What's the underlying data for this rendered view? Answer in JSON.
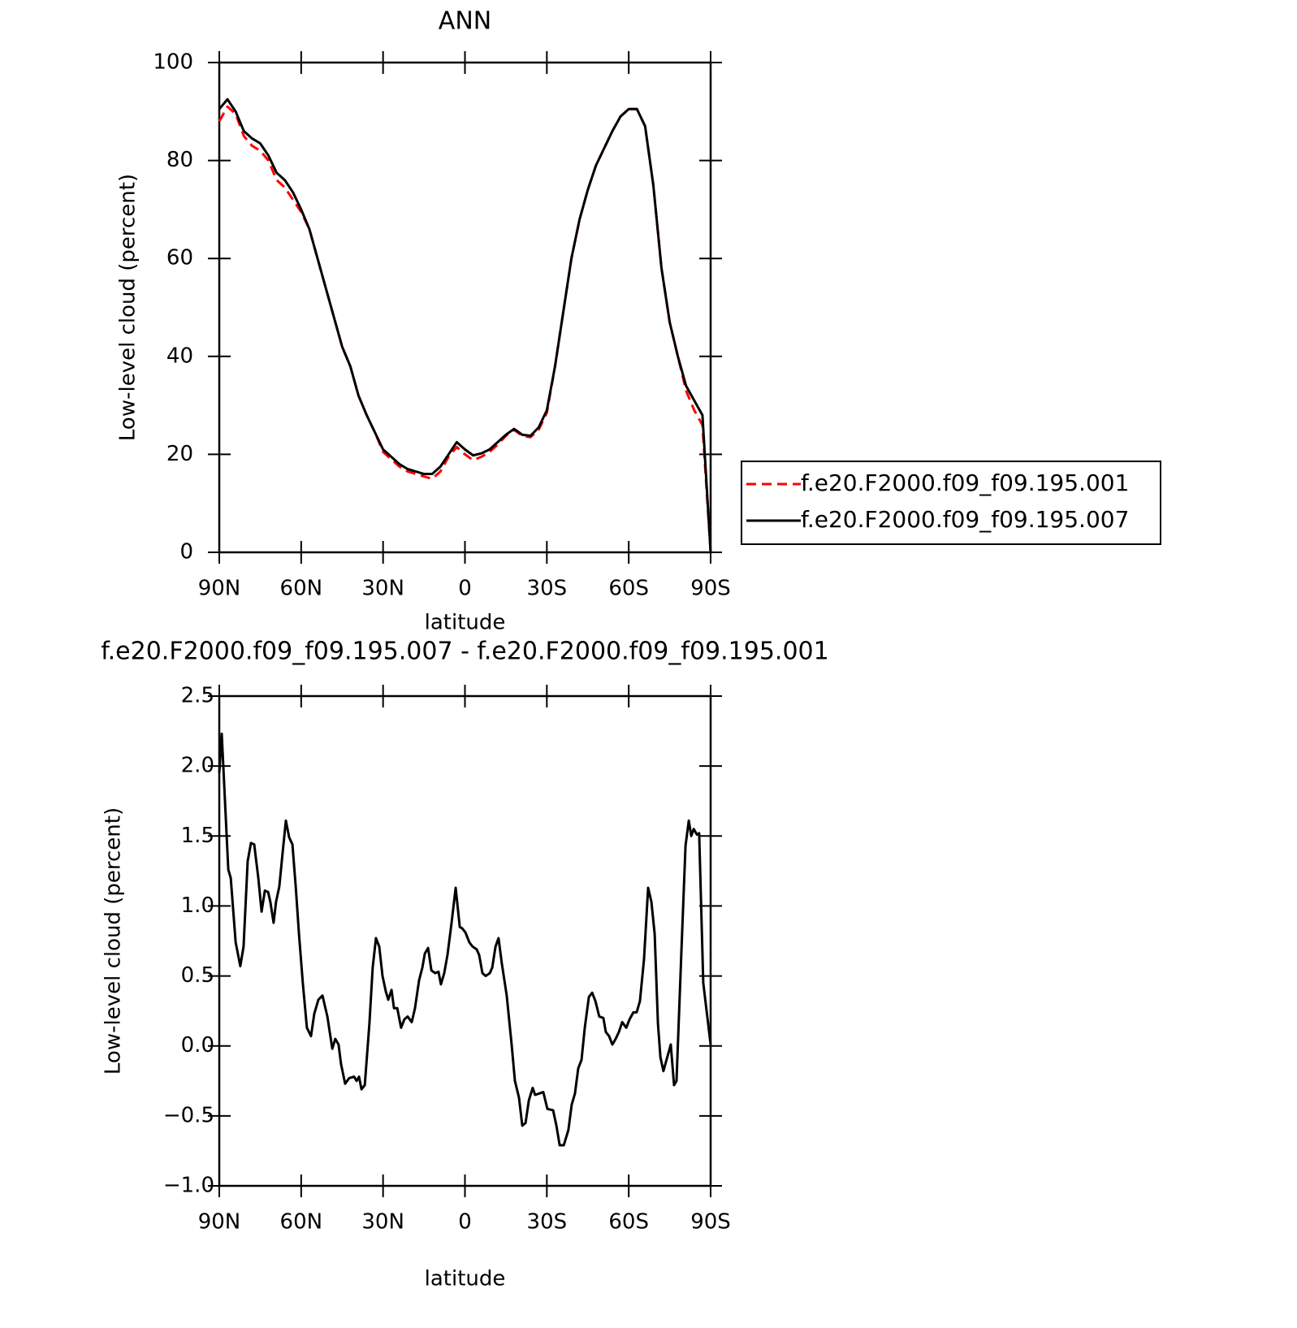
{
  "chart_data": [
    {
      "type": "line",
      "title": "ANN",
      "xlabel": "latitude",
      "ylabel": "Low-level cloud (percent)",
      "x": [
        90,
        87,
        84,
        81,
        78,
        75,
        72,
        69,
        66,
        63,
        60,
        57,
        54,
        51,
        48,
        45,
        42,
        39,
        36,
        33,
        30,
        27,
        24,
        21,
        18,
        15,
        12,
        9,
        6,
        3,
        0,
        -3,
        -6,
        -9,
        -12,
        -15,
        -18,
        -21,
        -24,
        -27,
        -30,
        -33,
        -36,
        -39,
        -42,
        -45,
        -48,
        -51,
        -54,
        -57,
        -60,
        -63,
        -66,
        -69,
        -72,
        -75,
        -78,
        -81,
        -84,
        -87,
        -90
      ],
      "series": [
        {
          "name": "f.e20.F2000.f09_f09.195.001",
          "color": "#ff0000",
          "dash": "dashed",
          "values": [
            88,
            91,
            89.5,
            85,
            83,
            82,
            80,
            76,
            74.5,
            72,
            69.5,
            66,
            60,
            54,
            48,
            42,
            38,
            32,
            28,
            24.5,
            20.5,
            19,
            17.5,
            16.5,
            16,
            15.5,
            15,
            16.5,
            19.5,
            21.5,
            20,
            18.8,
            19.5,
            20.5,
            22,
            23.8,
            25,
            23.8,
            23.5,
            25,
            28.5,
            38,
            49,
            60,
            68,
            74,
            79,
            82.5,
            86,
            89,
            90.5,
            90.5,
            87,
            75,
            58,
            47,
            40,
            33,
            29,
            26,
            0
          ]
        },
        {
          "name": "f.e20.F2000.f09_f09.195.007",
          "color": "#000000",
          "dash": "solid",
          "values": [
            90.5,
            92.5,
            90,
            86,
            84.5,
            83.5,
            81,
            77.5,
            76,
            73.5,
            70,
            66,
            60,
            54,
            48,
            42,
            38,
            32,
            28,
            24.5,
            21,
            19.5,
            18,
            17,
            16.5,
            16,
            16,
            17.5,
            20,
            22.5,
            21,
            19.8,
            20.2,
            21,
            22.5,
            24,
            25.2,
            24,
            23.8,
            25.5,
            29,
            38,
            49,
            60,
            68,
            74,
            79,
            82.5,
            86,
            89,
            90.5,
            90.5,
            87,
            75,
            58,
            47,
            40,
            34,
            31,
            28,
            0
          ]
        }
      ],
      "xlim": [
        90,
        -90
      ],
      "xticks": [
        {
          "value": 90,
          "label": "90N"
        },
        {
          "value": 60,
          "label": "60N"
        },
        {
          "value": 30,
          "label": "30N"
        },
        0,
        {
          "value": -30,
          "label": "30S"
        },
        {
          "value": -60,
          "label": "60S"
        },
        {
          "value": -90,
          "label": "90S"
        }
      ],
      "ylim": [
        0,
        100
      ],
      "yticks": [
        0,
        20,
        40,
        60,
        80,
        100
      ],
      "legend": "right"
    },
    {
      "type": "line",
      "title": "f.e20.F2000.f09_f09.195.007 - f.e20.F2000.f09_f09.195.001",
      "xlabel": "latitude",
      "ylabel": "Low-level cloud (percent)",
      "x": [
        90,
        89.1,
        86.7,
        85.8,
        84.0,
        82.3,
        81.1,
        79.6,
        78.4,
        77.2,
        75.7,
        74.5,
        73.3,
        72.1,
        71.3,
        70.1,
        69.2,
        68.0,
        66.8,
        65.6,
        64.4,
        63.2,
        62.0,
        60.8,
        59.4,
        57.9,
        56.4,
        55.2,
        53.7,
        52.2,
        50.4,
        48.6,
        47.5,
        46.3,
        45.4,
        43.9,
        42.4,
        40.6,
        39.7,
        38.8,
        37.9,
        36.7,
        35.0,
        33.8,
        32.6,
        31.4,
        30.2,
        29.0,
        28.1,
        26.9,
        26.0,
        24.8,
        23.4,
        22.2,
        21.0,
        19.5,
        18.3,
        16.8,
        15.6,
        14.7,
        13.5,
        12.3,
        10.9,
        9.7,
        8.8,
        7.6,
        6.4,
        4.9,
        3.4,
        1.9,
        1.0,
        -0.2,
        -1.6,
        -2.8,
        -4.3,
        -5.2,
        -6.4,
        -7.6,
        -9.1,
        -10.0,
        -11.2,
        -12.3,
        -13.5,
        -15.3,
        -17.1,
        -18.3,
        -19.8,
        -21.0,
        -22.2,
        -23.4,
        -24.8,
        -25.7,
        -27.2,
        -28.7,
        -30.2,
        -32.3,
        -33.5,
        -34.7,
        -36.2,
        -37.9,
        -39.1,
        -40.3,
        -41.5,
        -42.7,
        -43.9,
        -45.4,
        -46.6,
        -47.8,
        -49.2,
        -50.7,
        -51.6,
        -52.8,
        -54.0,
        -55.2,
        -56.4,
        -57.6,
        -59.1,
        -60.3,
        -61.7,
        -62.9,
        -64.1,
        -65.6,
        -67.1,
        -68.3,
        -69.5,
        -70.7,
        -71.6,
        -72.7,
        -75.4,
        -76.6,
        -77.5,
        -79.3,
        -80.8,
        -82.0,
        -82.9,
        -83.8,
        -85.0,
        -85.8,
        -87.3,
        -90
      ],
      "series": [
        {
          "color": "#000000",
          "dash": "solid",
          "values": [
            1.95,
            2.23,
            1.26,
            1.2,
            0.74,
            0.57,
            0.71,
            1.32,
            1.45,
            1.44,
            1.2,
            0.96,
            1.11,
            1.1,
            1.03,
            0.88,
            1.03,
            1.14,
            1.38,
            1.61,
            1.49,
            1.44,
            1.14,
            0.8,
            0.45,
            0.13,
            0.07,
            0.23,
            0.33,
            0.36,
            0.21,
            -0.02,
            0.05,
            0.01,
            -0.13,
            -0.27,
            -0.23,
            -0.22,
            -0.25,
            -0.22,
            -0.31,
            -0.28,
            0.16,
            0.56,
            0.77,
            0.71,
            0.5,
            0.39,
            0.33,
            0.4,
            0.27,
            0.27,
            0.13,
            0.19,
            0.21,
            0.17,
            0.27,
            0.47,
            0.56,
            0.66,
            0.7,
            0.54,
            0.52,
            0.53,
            0.44,
            0.52,
            0.65,
            0.88,
            1.13,
            0.85,
            0.84,
            0.81,
            0.74,
            0.71,
            0.69,
            0.65,
            0.52,
            0.5,
            0.52,
            0.56,
            0.71,
            0.77,
            0.59,
            0.36,
            0.01,
            -0.25,
            -0.37,
            -0.57,
            -0.55,
            -0.39,
            -0.3,
            -0.35,
            -0.34,
            -0.33,
            -0.45,
            -0.46,
            -0.57,
            -0.71,
            -0.71,
            -0.6,
            -0.42,
            -0.34,
            -0.16,
            -0.1,
            0.13,
            0.35,
            0.38,
            0.32,
            0.21,
            0.2,
            0.1,
            0.07,
            0.01,
            0.05,
            0.1,
            0.17,
            0.13,
            0.19,
            0.24,
            0.24,
            0.32,
            0.62,
            1.13,
            1.03,
            0.8,
            0.16,
            -0.08,
            -0.18,
            0.01,
            -0.28,
            -0.25,
            0.68,
            1.43,
            1.61,
            1.5,
            1.55,
            1.51,
            1.52,
            0.45,
            0.01
          ]
        }
      ],
      "xlim": [
        90,
        -90
      ],
      "xticks": [
        {
          "value": 90,
          "label": "90N"
        },
        {
          "value": 60,
          "label": "60N"
        },
        {
          "value": 30,
          "label": "30N"
        },
        0,
        {
          "value": -30,
          "label": "30S"
        },
        {
          "value": -60,
          "label": "60S"
        },
        {
          "value": -90,
          "label": "90S"
        }
      ],
      "ylim": [
        -1,
        2.5
      ],
      "yticks": [
        {
          "value": -1,
          "label": "−1.0"
        },
        {
          "value": -0.5,
          "label": "−0.5"
        },
        {
          "value": 0,
          "label": "0.0"
        },
        0.5,
        {
          "value": 1,
          "label": "1.0"
        },
        1.5,
        {
          "value": 2,
          "label": "2.0"
        },
        2.5
      ]
    }
  ]
}
